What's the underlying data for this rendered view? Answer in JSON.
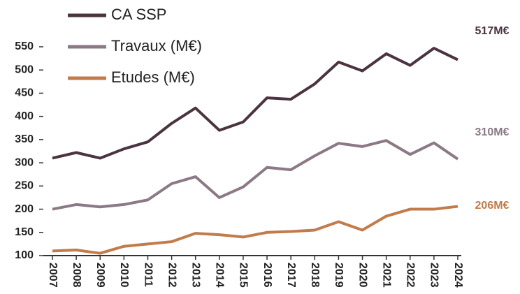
{
  "chart_data": {
    "type": "line",
    "categories": [
      "2007",
      "2008",
      "2009",
      "2010",
      "2011",
      "2012",
      "2013",
      "2014",
      "2015",
      "2016",
      "2017",
      "2018",
      "2019",
      "2020",
      "2021",
      "2022",
      "2023",
      "2024"
    ],
    "series": [
      {
        "name": "CA SSP",
        "color": "#4b3440",
        "values": [
          310,
          322,
          310,
          330,
          345,
          385,
          418,
          370,
          388,
          440,
          437,
          470,
          517,
          498,
          535,
          510,
          547,
          522
        ]
      },
      {
        "name": "Travaux (M€)",
        "color": "#8b7985",
        "values": [
          200,
          210,
          205,
          210,
          220,
          255,
          270,
          225,
          248,
          290,
          285,
          315,
          342,
          335,
          348,
          318,
          343,
          308
        ]
      },
      {
        "name": "Etudes (M€)",
        "color": "#c27b4b",
        "values": [
          110,
          112,
          105,
          120,
          125,
          130,
          148,
          145,
          140,
          150,
          152,
          155,
          173,
          155,
          185,
          200,
          200,
          206
        ]
      }
    ],
    "annotations": [
      "517M€",
      "310M€",
      "206M€"
    ],
    "ylim": [
      100,
      550
    ],
    "yticks": [
      100,
      150,
      200,
      250,
      300,
      350,
      400,
      450,
      500,
      550
    ]
  }
}
